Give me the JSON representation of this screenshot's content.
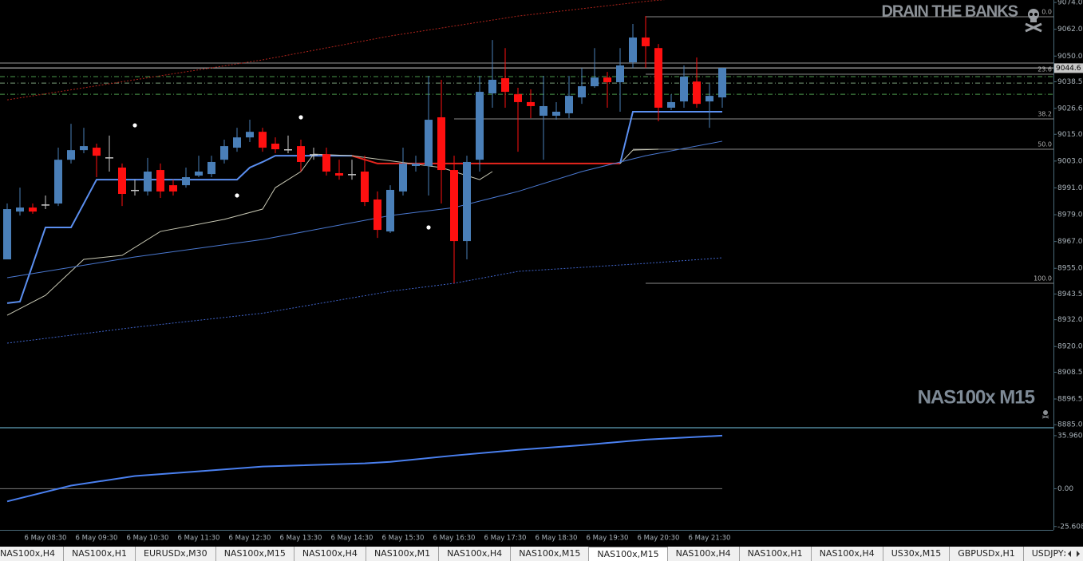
{
  "chart_data": [
    {
      "type": "candlestick",
      "watermark": "DRAIN THE BANKS",
      "symbol_label": "NAS100x M15",
      "categories": [
        null,
        null,
        null,
        "6 May 08:30",
        null,
        null,
        null,
        "6 May 09:30",
        null,
        null,
        null,
        "6 May 10:30",
        null,
        null,
        null,
        "6 May 11:30",
        null,
        null,
        null,
        "6 May 12:30",
        null,
        null,
        null,
        "6 May 13:30",
        null,
        null,
        null,
        "6 May 14:30",
        null,
        null,
        null,
        "6 May 15:30",
        null,
        null,
        null,
        "6 May 16:30",
        null,
        null,
        null,
        "6 May 17:30",
        null,
        null,
        null,
        "6 May 18:30",
        null,
        null,
        null,
        "6 May 19:30",
        null,
        null,
        null,
        "6 May 20:30",
        null,
        null,
        null,
        "6 May 21:30",
        null
      ],
      "open": [
        8959.0,
        8980.4,
        8982.2,
        8983.6,
        8984.0,
        9003.6,
        9007.9,
        9009.0,
        9004.7,
        9000.1,
        8990.1,
        8989.4,
        8999.0,
        8992.2,
        8992.2,
        8996.5,
        8997.2,
        9003.6,
        9009.0,
        9013.6,
        9016.1,
        9010.8,
        9008.3,
        9009.7,
        9006.1,
        9006.1,
        8997.6,
        8997.2,
        8998.3,
        8985.8,
        8971.5,
        8989.4,
        9000.8,
        9000.8,
        9022.6,
        8999.0,
        8967.2,
        9003.6,
        9033.3,
        9040.1,
        9032.9,
        9029.4,
        9023.3,
        9023.3,
        9024.4,
        9031.5,
        9036.5,
        9040.4,
        9038.3,
        9047.2,
        9058.3,
        9053.6,
        9026.9,
        9029.7,
        9038.6,
        9029.7,
        9031.5
      ],
      "high": [
        8984.0,
        8991.1,
        8984.0,
        8987.6,
        9009.0,
        9019.7,
        9017.9,
        9010.8,
        9014.4,
        9001.9,
        8994.7,
        9004.4,
        9001.9,
        8994.7,
        9000.1,
        9005.4,
        9005.4,
        9012.6,
        9017.9,
        9021.5,
        9017.9,
        9013.6,
        9014.4,
        9012.6,
        9009.0,
        9009.0,
        9003.6,
        9003.6,
        9005.4,
        8989.4,
        8992.2,
        9009.0,
        9005.4,
        9041.1,
        9039.4,
        9005.4,
        9005.4,
        9041.1,
        9057.2,
        9053.6,
        9035.8,
        9035.1,
        9041.1,
        9029.4,
        9041.1,
        9044.7,
        9053.6,
        9042.9,
        9053.6,
        9064.4,
        9067.9,
        9055.4,
        9032.9,
        9045.8,
        9049.4,
        9037.6,
        9044.7
      ],
      "low": [
        8959.0,
        8978.6,
        8979.4,
        8981.5,
        8982.9,
        9001.9,
        9006.5,
        8995.8,
        8998.3,
        8982.9,
        8987.6,
        8987.6,
        8986.5,
        8987.6,
        8991.1,
        8995.8,
        8995.8,
        9001.9,
        9007.2,
        9011.5,
        9007.2,
        9006.5,
        9006.5,
        8998.3,
        9003.6,
        8996.5,
        8994.7,
        8994.7,
        8982.9,
        8968.6,
        8970.8,
        8987.6,
        8998.3,
        8987.6,
        8984.0,
        8948.3,
        8959.0,
        8998.3,
        9026.9,
        9026.9,
        9007.2,
        9022.2,
        9003.6,
        9021.5,
        9022.2,
        9028.6,
        9035.8,
        9026.9,
        9025.1,
        9044.7,
        9044.7,
        9020.8,
        9025.8,
        9026.9,
        9026.9,
        9017.9,
        9026.9
      ],
      "close": [
        8981.5,
        8982.2,
        8980.4,
        8983.6,
        9003.6,
        9007.9,
        9009.7,
        9005.4,
        9004.7,
        8988.3,
        8990.1,
        8998.3,
        8989.4,
        8989.4,
        8995.8,
        8998.3,
        9002.6,
        9009.7,
        9013.6,
        9016.1,
        9009.0,
        9008.3,
        9008.3,
        9002.6,
        9006.1,
        8998.3,
        8996.5,
        8997.2,
        8984.7,
        8972.2,
        8990.1,
        9001.9,
        9001.9,
        9021.5,
        8999.0,
        8967.2,
        9002.6,
        9034.0,
        9039.4,
        9034.0,
        9029.4,
        9027.6,
        9027.6,
        9025.1,
        9032.2,
        9036.5,
        9040.4,
        9038.3,
        9045.8,
        9058.3,
        9054.4,
        9026.9,
        9029.4,
        9040.8,
        9028.6,
        9032.2,
        9044.7
      ],
      "up_color": "#4a7fb8",
      "down_color": "#ff1010",
      "ylim": [
        8884.0,
        9075.1
      ],
      "yticks": [
        {
          "value": 9074,
          "label": "9074.0"
        },
        {
          "value": 9062,
          "label": "9062.0"
        },
        {
          "value": 9050,
          "label": "9050.0"
        },
        9038.5,
        9026.6,
        {
          "value": 9015,
          "label": "9015.0"
        },
        {
          "value": 9003,
          "label": "9003.0"
        },
        {
          "value": 8991,
          "label": "8991.0"
        },
        {
          "value": 8979,
          "label": "8979.0"
        },
        {
          "value": 8967,
          "label": "8967.0"
        },
        {
          "value": 8955,
          "label": "8955.0"
        },
        8943.5,
        {
          "value": 8932,
          "label": "8932.0"
        },
        {
          "value": 8920,
          "label": "8920.0"
        },
        8908.5,
        8896.5,
        {
          "value": 8885,
          "label": "8885.0"
        }
      ],
      "bid": 9044.6,
      "overlays": [
        {
          "color": "#5b8ff0",
          "style": "thick",
          "x": [
            0,
            1,
            3,
            5,
            7,
            18,
            19,
            20,
            21,
            27
          ],
          "values": [
            8939.4,
            8940.1,
            8973.3,
            8973.3,
            8994.7,
            8994.7,
            9000.1,
            9002.6,
            9005.4,
            9005.4
          ]
        },
        {
          "color": "#e8261e",
          "style": "thick",
          "x": [
            27,
            29,
            48
          ],
          "values": [
            9005.4,
            9001.9,
            9001.9
          ]
        },
        {
          "color": "#5b8ff0",
          "style": "thick",
          "x": [
            48,
            49,
            56
          ],
          "values": [
            9001.9,
            9025.1,
            9025.1
          ]
        },
        {
          "color": "#c8c8b4",
          "style": "thin",
          "x": [
            0,
            3,
            6,
            9,
            12,
            17,
            20,
            21,
            23,
            24,
            27,
            34,
            37,
            38
          ],
          "values": [
            8934.0,
            8942.9,
            8959.0,
            8960.8,
            8971.5,
            8976.9,
            8981.5,
            8991.1,
            8998.3,
            9006.1,
            9005.4,
            9000.1,
            8994.7,
            8998.3
          ]
        },
        {
          "color": "#c8c8b4",
          "style": "thin",
          "x": [
            48,
            49,
            51
          ],
          "values": [
            9001.9,
            9007.9,
            9008.3
          ]
        },
        {
          "color": "#4a78d0",
          "style": "thin",
          "x": [
            0,
            10,
            20,
            30,
            35,
            40,
            45,
            50,
            56
          ],
          "values": [
            8950.8,
            8960.1,
            8967.9,
            8978.6,
            8982.2,
            8989.4,
            8998.3,
            9005.4,
            9011.9
          ]
        },
        {
          "color": "#3f63c8",
          "style": "dotted",
          "x": [
            0,
            10,
            20,
            30,
            35,
            40,
            45,
            50,
            56
          ],
          "values": [
            8921.5,
            8928.6,
            8934.9,
            8944.7,
            8948.3,
            8953.6,
            8955.4,
            8957.2,
            8959.7
          ]
        },
        {
          "color": "#b0241c",
          "style": "dotted",
          "x": [
            0,
            10,
            20,
            30,
            40,
            50,
            52
          ],
          "values": [
            9030.4,
            9039.4,
            9048.3,
            9059.0,
            9067.9,
            9074.5,
            9075.5
          ]
        }
      ],
      "markers": {
        "color": "#ffffff",
        "x": [
          10,
          23,
          18,
          33
        ],
        "values": [
          9019.0,
          9022.6,
          8987.6,
          8973.3
        ]
      },
      "levels": [
        {
          "value": 9046.9,
          "color": "#9a9a9a",
          "style": "solid"
        },
        {
          "value": 9044.7,
          "color": "#cfcfcf",
          "style": "solid"
        },
        {
          "value": 9040.8,
          "color": "#4c9a4c",
          "style": "dashdot"
        },
        {
          "value": 9037.9,
          "color": "#7aa07a",
          "style": "dashdot"
        },
        {
          "value": 9032.9,
          "color": "#4c9a4c",
          "style": "dashdot"
        }
      ],
      "fib": {
        "color": "#8a8a8a",
        "levels": [
          {
            "label": "0.0",
            "value": 9067.6,
            "from": 50
          },
          {
            "label": "23.6",
            "value": 9041.9,
            "from": 50
          },
          {
            "label": "38.2",
            "value": 9021.9,
            "from": 35
          },
          {
            "label": "50.0",
            "value": 9008.3,
            "from": 49
          },
          {
            "label": "100.0",
            "value": 8948.3,
            "from": 50
          }
        ]
      }
    },
    {
      "type": "line",
      "color": "#4a80f0",
      "x": [
        0,
        5,
        10,
        15,
        20,
        28,
        30,
        35,
        40,
        45,
        50,
        56
      ],
      "values": [
        -8.6,
        2.1,
        8.6,
        11.8,
        15.0,
        17.2,
        18.2,
        22.5,
        26.3,
        29.5,
        33.3,
        36.0
      ],
      "ylim": [
        -27.9,
        40.25
      ],
      "yticks": [
        35.9602,
        {
          "value": 0,
          "label": "0.00"
        },
        -25.6084
      ],
      "level": 0
    }
  ],
  "tabs": [
    {
      "label": "NAS100x,H4"
    },
    {
      "label": "NAS100x,H1"
    },
    {
      "label": "EURUSDx,M30"
    },
    {
      "label": "NAS100x,M15"
    },
    {
      "label": "NAS100x,H4"
    },
    {
      "label": "NAS100x,M1"
    },
    {
      "label": "NAS100x,H4"
    },
    {
      "label": "NAS100x,M15"
    },
    {
      "label": "NAS100x,M15",
      "active": true
    },
    {
      "label": "NAS100x,H4"
    },
    {
      "label": "NAS100x,H1"
    },
    {
      "label": "NAS100x,H4"
    },
    {
      "label": "US30x,M15"
    },
    {
      "label": "GBPUSDx,H1"
    },
    {
      "label": "USDJPYx,Daily"
    }
  ]
}
